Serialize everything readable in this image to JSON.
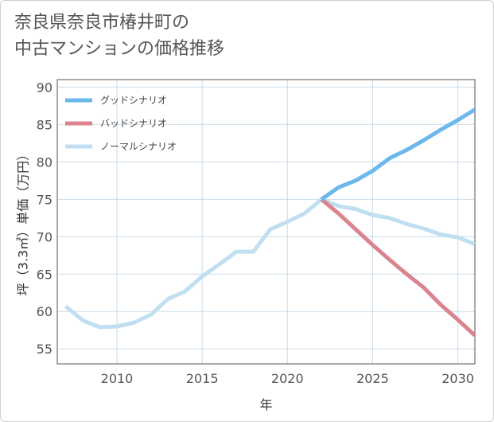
{
  "title_lines": [
    "奈良県奈良市椿井町の",
    "中古マンションの価格推移"
  ],
  "chart_data": {
    "type": "line",
    "title": "奈良県奈良市椿井町の中古マンションの価格推移",
    "xlabel": "年",
    "ylabel": "坪（3.3㎡）単価（万円）",
    "xlim": [
      2006.5,
      2031
    ],
    "ylim": [
      53,
      91
    ],
    "xticks": [
      2010,
      2015,
      2020,
      2025,
      2030
    ],
    "yticks": [
      55,
      60,
      65,
      70,
      75,
      80,
      85,
      90
    ],
    "grid": true,
    "legend_position": "top-left",
    "series": [
      {
        "name": "グッドシナリオ",
        "color": "#6cb8ec",
        "x": [
          2022,
          2023,
          2024,
          2025,
          2026,
          2027,
          2028,
          2029,
          2030,
          2031
        ],
        "y": [
          75.0,
          76.6,
          77.5,
          78.8,
          80.5,
          81.6,
          82.9,
          84.3,
          85.6,
          87.0
        ]
      },
      {
        "name": "バッドシナリオ",
        "color": "#d9848f",
        "x": [
          2022,
          2023,
          2024,
          2025,
          2026,
          2027,
          2028,
          2029,
          2030,
          2031
        ],
        "y": [
          75.0,
          73.1,
          71.0,
          68.9,
          66.9,
          65.0,
          63.2,
          60.9,
          58.9,
          56.8
        ]
      },
      {
        "name": "ノーマルシナリオ",
        "color": "#c0dff0",
        "x": [
          2007,
          2008,
          2009,
          2010,
          2011,
          2012,
          2013,
          2014,
          2015,
          2016,
          2017,
          2018,
          2019,
          2020,
          2021,
          2022,
          2023,
          2024,
          2025,
          2026,
          2027,
          2028,
          2029,
          2030,
          2031
        ],
        "y": [
          60.7,
          58.8,
          57.9,
          58.0,
          58.5,
          59.6,
          61.7,
          62.7,
          64.7,
          66.3,
          68.0,
          68.0,
          71.0,
          72.0,
          73.1,
          75.0,
          74.1,
          73.7,
          72.9,
          72.5,
          71.7,
          71.1,
          70.3,
          69.9,
          69.0
        ]
      }
    ]
  }
}
